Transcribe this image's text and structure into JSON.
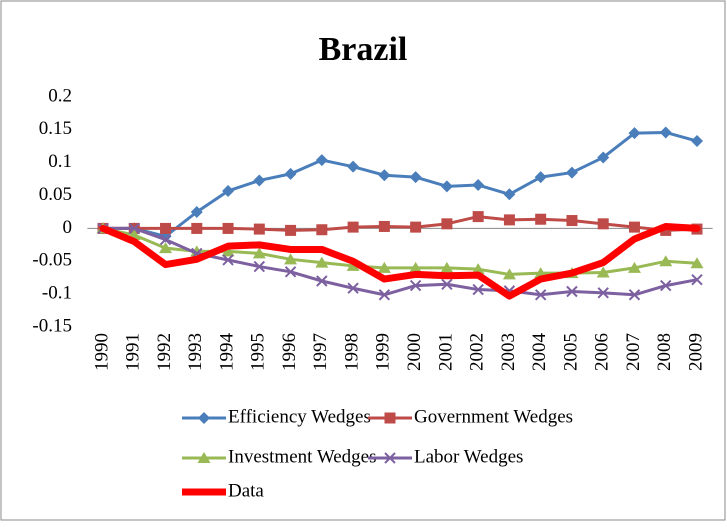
{
  "chart_data": {
    "type": "line",
    "title": "Brazil",
    "categories": [
      "1990",
      "1991",
      "1992",
      "1993",
      "1994",
      "1995",
      "1996",
      "1997",
      "1998",
      "1999",
      "2000",
      "2001",
      "2002",
      "2003",
      "2004",
      "2005",
      "2006",
      "2007",
      "2008",
      "2009"
    ],
    "series": [
      {
        "name": "Efficiency Wedges",
        "color": "#4a7ebb",
        "marker": "diamond",
        "values": [
          0,
          0,
          -0.012,
          0.025,
          0.057,
          0.073,
          0.083,
          0.104,
          0.094,
          0.081,
          0.078,
          0.064,
          0.066,
          0.052,
          0.078,
          0.085,
          0.108,
          0.145,
          0.146,
          0.133
        ]
      },
      {
        "name": "Government Wedges",
        "color": "#be4b48",
        "marker": "square",
        "values": [
          0,
          0,
          0,
          0,
          0,
          -0.001,
          -0.003,
          -0.002,
          0.002,
          0.003,
          0.002,
          0.007,
          0.018,
          0.013,
          0.014,
          0.012,
          0.007,
          0.002,
          -0.003,
          -0.001
        ]
      },
      {
        "name": "Investment Wedges",
        "color": "#98b954",
        "marker": "triangle",
        "values": [
          0,
          -0.01,
          -0.03,
          -0.035,
          -0.035,
          -0.038,
          -0.047,
          -0.052,
          -0.057,
          -0.06,
          -0.06,
          -0.06,
          -0.062,
          -0.07,
          -0.068,
          -0.068,
          -0.067,
          -0.06,
          -0.05,
          -0.053
        ]
      },
      {
        "name": "Labor Wedges",
        "color": "#7d60a0",
        "marker": "x",
        "values": [
          0,
          0,
          -0.017,
          -0.038,
          -0.048,
          -0.058,
          -0.066,
          -0.08,
          -0.091,
          -0.101,
          -0.087,
          -0.085,
          -0.093,
          -0.095,
          -0.101,
          -0.096,
          -0.098,
          -0.101,
          -0.087,
          -0.078
        ]
      },
      {
        "name": "Data",
        "color": "#ff0000",
        "marker": "none",
        "values": [
          0,
          -0.02,
          -0.055,
          -0.047,
          -0.027,
          -0.025,
          -0.032,
          -0.032,
          -0.05,
          -0.077,
          -0.07,
          -0.072,
          -0.071,
          -0.103,
          -0.077,
          -0.068,
          -0.052,
          -0.016,
          0.003,
          0
        ]
      }
    ],
    "ylim": [
      -0.15,
      0.2
    ],
    "yticks": [
      0.2,
      0.15,
      0.1,
      0.05,
      0,
      -0.05,
      -0.1,
      -0.15
    ],
    "grid": false
  }
}
